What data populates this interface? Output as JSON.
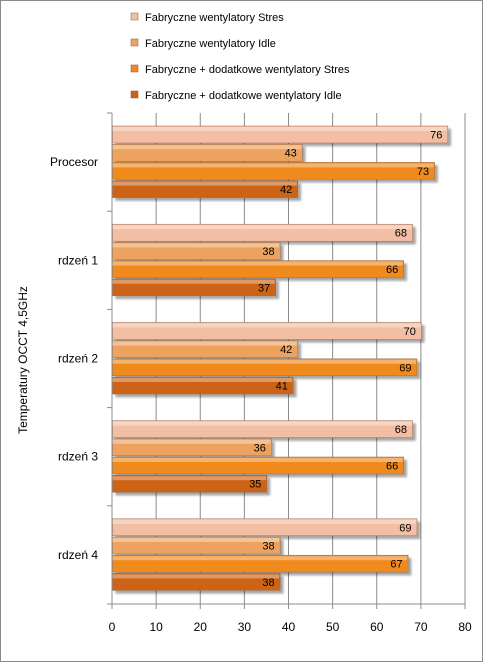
{
  "chart_data": {
    "type": "bar",
    "orientation": "horizontal",
    "title": "",
    "xlabel": "",
    "ylabel": "Temperatury OCCT 4,5GHz",
    "xlim": [
      0,
      80
    ],
    "xticks": [
      "0",
      "10",
      "20",
      "30",
      "40",
      "50",
      "60",
      "70",
      "80"
    ],
    "categories": [
      "Procesor",
      "rdzeń 1",
      "rdzeń 2",
      "rdzeń 3",
      "rdzeń 4"
    ],
    "series": [
      {
        "name": "Fabryczne  wentylatory Stres",
        "values": [
          76,
          68,
          70,
          68,
          69
        ],
        "color": "#f2bfa5"
      },
      {
        "name": "Fabryczne  wentylatory Idle",
        "values": [
          43,
          38,
          42,
          36,
          38
        ],
        "color": "#eda35e"
      },
      {
        "name": "Fabryczne + dodatkowe  wentylatory Stres",
        "values": [
          73,
          66,
          69,
          66,
          67
        ],
        "color": "#f08a1e"
      },
      {
        "name": "Fabryczne + dodatkowe  wentylatory Idle",
        "values": [
          42,
          37,
          41,
          35,
          38
        ],
        "color": "#cc6417"
      }
    ],
    "grid": true,
    "legend_position": "top"
  }
}
